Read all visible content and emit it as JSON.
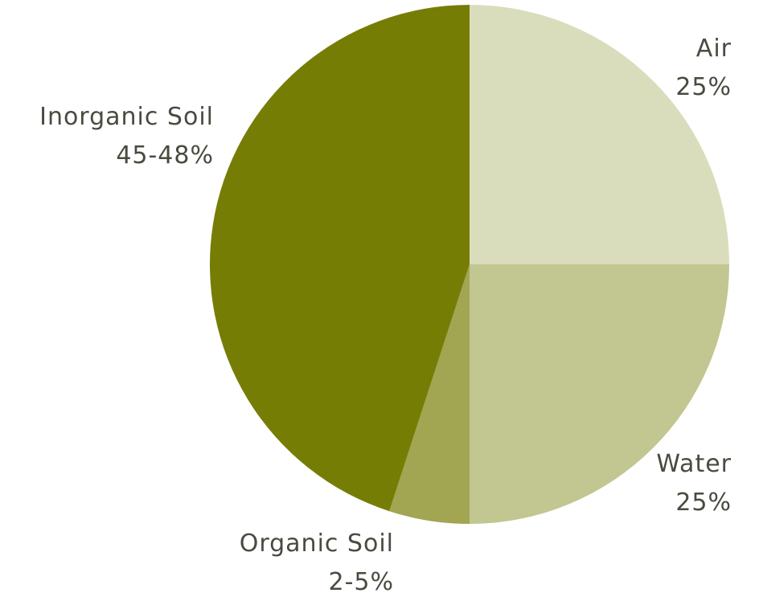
{
  "chart_data": {
    "type": "pie",
    "title": "",
    "start": "top",
    "direction": "clockwise",
    "slices": [
      {
        "label": "Air",
        "value_label": "25%",
        "value": 25,
        "color": "#d9ddbc"
      },
      {
        "label": "Water",
        "value_label": "25%",
        "value": 25,
        "color": "#c2c690"
      },
      {
        "label": "Organic Soil",
        "value_label": "2-5%",
        "value": 5,
        "color": "#a2a552"
      },
      {
        "label": "Inorganic Soil",
        "value_label": "45-48%",
        "value": 45,
        "color": "#767d05"
      }
    ]
  }
}
